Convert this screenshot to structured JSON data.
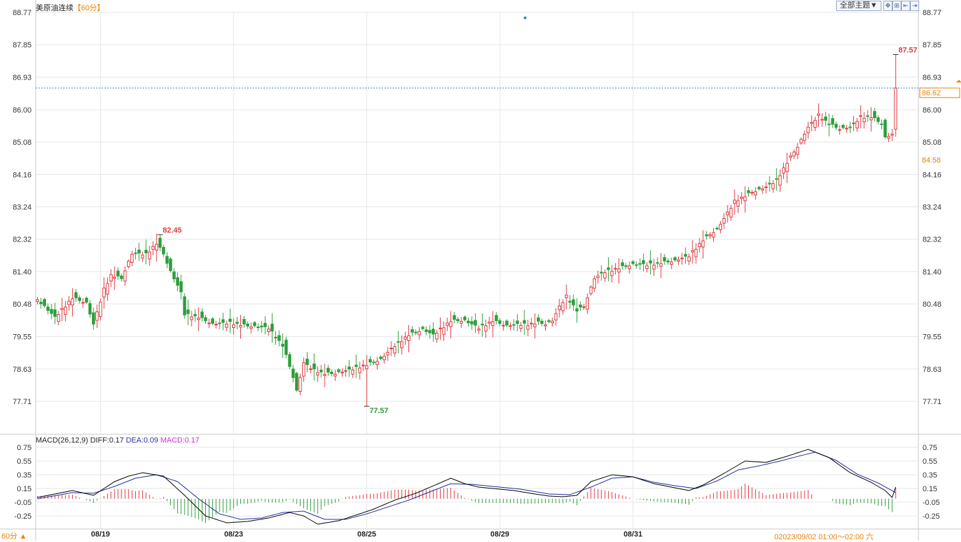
{
  "header": {
    "title": "美原油连续",
    "period": "【60分】",
    "theme_button": "全部主题▼",
    "icons": [
      "zoom-fit-icon",
      "zoom-in-icon",
      "first-page-icon",
      "last-page-icon"
    ]
  },
  "footer": {
    "period_button": "60分 ▲",
    "status_text": "2023/09/02 01:00～02:00 六",
    "cursor_marker": "0"
  },
  "macd_header": {
    "name": "MACD(26,12,9)",
    "diff": "DIFF:0.17",
    "dea": "DEA:0.09",
    "macd": "MACD:0.17"
  },
  "colors": {
    "up": "#e0393e",
    "down": "#2e9e3d",
    "diff_line": "#000000",
    "dea_line": "#1f2ca0",
    "accent": "#e6820a",
    "grid": "#e6e6e6",
    "current_price_line": "#2a8ec5"
  },
  "chart_data": [
    {
      "type": "candlestick",
      "title": "美原油连续【60分】",
      "y_ticks": [
        "88.77",
        "87.85",
        "86.93",
        "86.00",
        "85.08",
        "84.16",
        "83.24",
        "82.32",
        "81.40",
        "80.48",
        "79.55",
        "78.63",
        "77.71"
      ],
      "ylim": [
        77.0,
        88.77
      ],
      "x_tick_labels": [
        "08/19",
        "08/23",
        "08/25",
        "08/29",
        "08/31"
      ],
      "x_tick_index": [
        18,
        56,
        94,
        132,
        170
      ],
      "annotations": {
        "high": "82.45",
        "low": "77.57",
        "last_high": "87.57"
      },
      "current_price": "86.62",
      "right_tag_secondary": "84.58",
      "high_value": 82.45,
      "low_value": 77.57,
      "last_high_value": 87.57,
      "current_value": 86.62,
      "grid": true,
      "candle_count": 246,
      "close_anchors": [
        [
          0,
          80.6
        ],
        [
          5,
          80.1
        ],
        [
          10,
          80.65
        ],
        [
          14,
          80.5
        ],
        [
          16,
          79.9
        ],
        [
          19,
          80.9
        ],
        [
          21,
          81.3
        ],
        [
          24,
          81.2
        ],
        [
          27,
          81.9
        ],
        [
          31,
          81.9
        ],
        [
          34,
          82.2
        ],
        [
          36,
          81.9
        ],
        [
          38,
          81.4
        ],
        [
          40,
          81.0
        ],
        [
          41,
          80.8
        ],
        [
          42,
          80.2
        ],
        [
          46,
          80.1
        ],
        [
          50,
          79.9
        ],
        [
          55,
          79.95
        ],
        [
          60,
          79.85
        ],
        [
          66,
          79.8
        ],
        [
          70,
          79.3
        ],
        [
          73,
          78.4
        ],
        [
          74,
          78.0
        ],
        [
          76,
          78.8
        ],
        [
          79,
          78.6
        ],
        [
          82,
          78.5
        ],
        [
          85,
          78.5
        ],
        [
          89,
          78.6
        ],
        [
          92,
          78.7
        ],
        [
          94,
          78.75
        ],
        [
          98,
          78.9
        ],
        [
          102,
          79.3
        ],
        [
          106,
          79.6
        ],
        [
          110,
          79.75
        ],
        [
          113,
          79.6
        ],
        [
          118,
          80.0
        ],
        [
          122,
          80.0
        ],
        [
          126,
          79.8
        ],
        [
          130,
          80.0
        ],
        [
          134,
          79.85
        ],
        [
          137,
          79.9
        ],
        [
          140,
          79.9
        ],
        [
          143,
          79.95
        ],
        [
          145,
          79.9
        ],
        [
          147,
          80.0
        ],
        [
          149,
          80.4
        ],
        [
          151,
          80.7
        ],
        [
          154,
          80.3
        ],
        [
          156,
          80.4
        ],
        [
          159,
          81.2
        ],
        [
          162,
          81.4
        ],
        [
          166,
          81.5
        ],
        [
          170,
          81.6
        ],
        [
          174,
          81.6
        ],
        [
          178,
          81.65
        ],
        [
          182,
          81.7
        ],
        [
          186,
          81.85
        ],
        [
          190,
          82.3
        ],
        [
          194,
          82.6
        ],
        [
          196,
          82.9
        ],
        [
          199,
          83.4
        ],
        [
          204,
          83.65
        ],
        [
          208,
          83.8
        ],
        [
          211,
          84.0
        ],
        [
          214,
          84.5
        ],
        [
          217,
          84.95
        ],
        [
          220,
          85.5
        ],
        [
          223,
          85.85
        ],
        [
          226,
          85.6
        ],
        [
          229,
          85.45
        ],
        [
          232,
          85.5
        ],
        [
          235,
          85.8
        ],
        [
          238,
          85.8
        ],
        [
          241,
          85.6
        ],
        [
          242,
          85.2
        ],
        [
          244,
          85.3
        ],
        [
          245,
          86.62
        ]
      ],
      "offsets": [
        [
          0.0,
          0.15
        ],
        [
          -0.2,
          0.25
        ],
        [
          0.35,
          0.1
        ],
        [
          -0.1,
          0.2
        ],
        [
          0.1,
          0.3
        ],
        [
          0.3,
          0.4
        ],
        [
          -0.4,
          0.2
        ],
        [
          0.4,
          0.6
        ],
        [
          -0.5,
          0.35
        ],
        [
          0.2,
          0.3
        ],
        [
          -0.3,
          0.6
        ],
        [
          0.5,
          0.2
        ]
      ]
    },
    {
      "type": "macd",
      "title": "MACD(26,12,9)",
      "y_ticks": [
        "0.75",
        "0.55",
        "0.35",
        "0.15",
        "-0.05",
        "-0.25"
      ],
      "ylim": [
        -0.42,
        0.83
      ],
      "series_names": [
        "DIFF",
        "DEA",
        "MACD"
      ],
      "diff_last": 0.17,
      "dea_last": 0.09,
      "macd_last": 0.17,
      "diff_anchors": [
        [
          0,
          0.02
        ],
        [
          10,
          0.12
        ],
        [
          16,
          0.05
        ],
        [
          22,
          0.25
        ],
        [
          26,
          0.33
        ],
        [
          30,
          0.38
        ],
        [
          36,
          0.33
        ],
        [
          42,
          0.05
        ],
        [
          48,
          -0.25
        ],
        [
          54,
          -0.35
        ],
        [
          60,
          -0.33
        ],
        [
          66,
          -0.28
        ],
        [
          72,
          -0.2
        ],
        [
          76,
          -0.25
        ],
        [
          80,
          -0.37
        ],
        [
          86,
          -0.32
        ],
        [
          92,
          -0.22
        ],
        [
          96,
          -0.15
        ],
        [
          102,
          -0.02
        ],
        [
          108,
          0.08
        ],
        [
          114,
          0.21
        ],
        [
          118,
          0.3
        ],
        [
          122,
          0.22
        ],
        [
          126,
          0.17
        ],
        [
          130,
          0.15
        ],
        [
          136,
          0.12
        ],
        [
          142,
          0.07
        ],
        [
          146,
          0.04
        ],
        [
          150,
          0.03
        ],
        [
          154,
          0.05
        ],
        [
          158,
          0.25
        ],
        [
          164,
          0.35
        ],
        [
          170,
          0.32
        ],
        [
          176,
          0.22
        ],
        [
          180,
          0.18
        ],
        [
          186,
          0.12
        ],
        [
          190,
          0.2
        ],
        [
          196,
          0.37
        ],
        [
          202,
          0.55
        ],
        [
          208,
          0.53
        ],
        [
          214,
          0.62
        ],
        [
          220,
          0.72
        ],
        [
          226,
          0.6
        ],
        [
          232,
          0.38
        ],
        [
          238,
          0.24
        ],
        [
          242,
          0.12
        ],
        [
          244,
          0.02
        ],
        [
          245,
          0.17
        ]
      ],
      "dea_anchors": [
        [
          0,
          0.0
        ],
        [
          10,
          0.09
        ],
        [
          16,
          0.08
        ],
        [
          22,
          0.18
        ],
        [
          28,
          0.3
        ],
        [
          34,
          0.35
        ],
        [
          40,
          0.25
        ],
        [
          46,
          0.0
        ],
        [
          52,
          -0.22
        ],
        [
          58,
          -0.3
        ],
        [
          64,
          -0.28
        ],
        [
          70,
          -0.2
        ],
        [
          76,
          -0.18
        ],
        [
          82,
          -0.3
        ],
        [
          88,
          -0.3
        ],
        [
          94,
          -0.22
        ],
        [
          100,
          -0.12
        ],
        [
          106,
          -0.02
        ],
        [
          112,
          0.1
        ],
        [
          118,
          0.22
        ],
        [
          124,
          0.21
        ],
        [
          130,
          0.18
        ],
        [
          138,
          0.14
        ],
        [
          146,
          0.07
        ],
        [
          152,
          0.06
        ],
        [
          158,
          0.17
        ],
        [
          164,
          0.3
        ],
        [
          170,
          0.32
        ],
        [
          176,
          0.24
        ],
        [
          182,
          0.19
        ],
        [
          188,
          0.15
        ],
        [
          194,
          0.26
        ],
        [
          200,
          0.42
        ],
        [
          206,
          0.48
        ],
        [
          212,
          0.55
        ],
        [
          218,
          0.63
        ],
        [
          222,
          0.68
        ],
        [
          228,
          0.56
        ],
        [
          234,
          0.36
        ],
        [
          240,
          0.23
        ],
        [
          245,
          0.09
        ]
      ]
    }
  ]
}
